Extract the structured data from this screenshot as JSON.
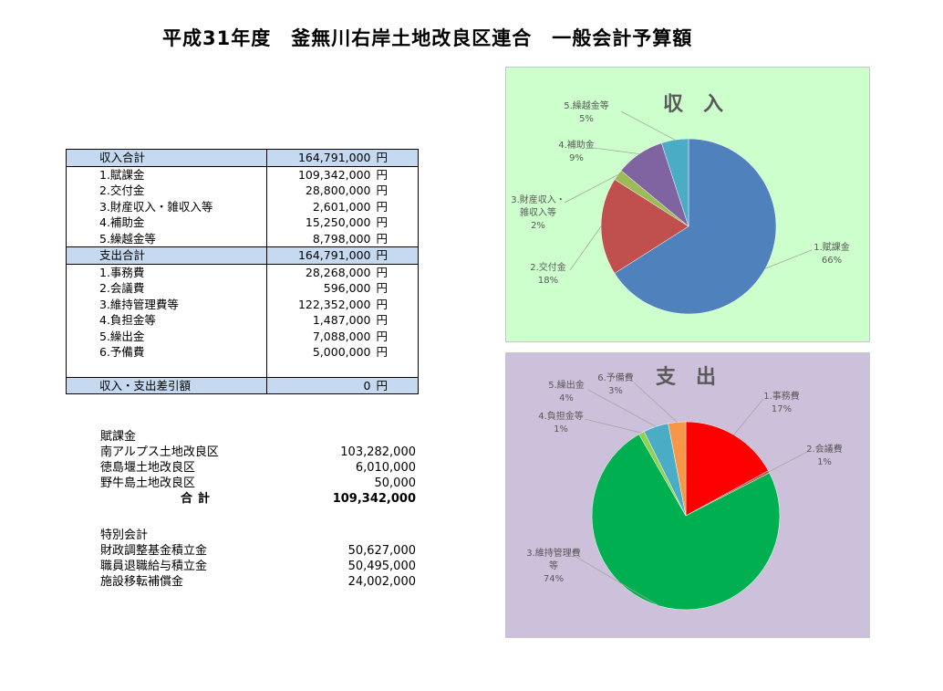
{
  "title": "平成31年度　釜無川右岸土地改良区連合　一般会計予算額",
  "budget": {
    "yen": "円",
    "income_total": {
      "label": "収入合計",
      "value": "164,791,000"
    },
    "income_items": [
      {
        "label": "1.賦課金",
        "value": "109,342,000"
      },
      {
        "label": "2.交付金",
        "value": "28,800,000"
      },
      {
        "label": "3.財産収入・雑収入等",
        "value": "2,601,000"
      },
      {
        "label": "4.補助金",
        "value": "15,250,000"
      },
      {
        "label": "5.繰越金等",
        "value": "8,798,000"
      }
    ],
    "expense_total": {
      "label": "支出合計",
      "value": "164,791,000"
    },
    "expense_items": [
      {
        "label": "1.事務費",
        "value": "28,268,000"
      },
      {
        "label": "2.会議費",
        "value": "596,000"
      },
      {
        "label": "3.維持管理費等",
        "value": "122,352,000"
      },
      {
        "label": "4.負担金等",
        "value": "1,487,000"
      },
      {
        "label": "5.繰出金",
        "value": "7,088,000"
      },
      {
        "label": "6.予備費",
        "value": "5,000,000"
      }
    ],
    "balance": {
      "label": "収入・支出差引額",
      "value": "0"
    }
  },
  "levy": {
    "heading": "賦課金",
    "rows": [
      {
        "name": "南アルプス土地改良区",
        "value": "103,282,000"
      },
      {
        "name": "徳島堰土地改良区",
        "value": "6,010,000"
      },
      {
        "name": "野牛島土地改良区",
        "value": "50,000"
      }
    ],
    "total": {
      "name": "合計",
      "value": "109,342,000"
    }
  },
  "special": {
    "heading": "特別会計",
    "rows": [
      {
        "name": "財政調整基金積立金",
        "value": "50,627,000"
      },
      {
        "name": "職員退職給与積立金",
        "value": "50,495,000"
      },
      {
        "name": "施設移転補償金",
        "value": "24,002,000"
      }
    ]
  },
  "chart_data": [
    {
      "type": "pie",
      "title": "収　入",
      "background": "#ccffcc",
      "slices": [
        {
          "label": "1.賦課金",
          "pct": "66%",
          "value": 66,
          "color": "#4f81bd"
        },
        {
          "label": "2.交付金",
          "pct": "18%",
          "value": 18,
          "color": "#c0504d"
        },
        {
          "label": "3.財産収入・雑収入等",
          "pct": "2%",
          "value": 2,
          "color": "#9bbb59"
        },
        {
          "label": "4.補助金",
          "pct": "9%",
          "value": 9,
          "color": "#8064a2"
        },
        {
          "label": "5.繰越金等",
          "pct": "5%",
          "value": 5,
          "color": "#4bacc6"
        }
      ]
    },
    {
      "type": "pie",
      "title": "支　出",
      "background": "#ccc0da",
      "slices": [
        {
          "label": "1.事務費",
          "pct": "17%",
          "value": 17,
          "color": "#ff0000"
        },
        {
          "label": "2.会議費",
          "pct": "1%",
          "value": 0.4,
          "color": "#c0504d"
        },
        {
          "label": "3.維持管理費等",
          "pct": "74%",
          "value": 74,
          "color": "#00b050"
        },
        {
          "label": "4.負担金等",
          "pct": "1%",
          "value": 1,
          "color": "#92d050"
        },
        {
          "label": "5.繰出金",
          "pct": "4%",
          "value": 4.3,
          "color": "#4bacc6"
        },
        {
          "label": "6.予備費",
          "pct": "3%",
          "value": 3,
          "color": "#f79646"
        }
      ]
    }
  ]
}
